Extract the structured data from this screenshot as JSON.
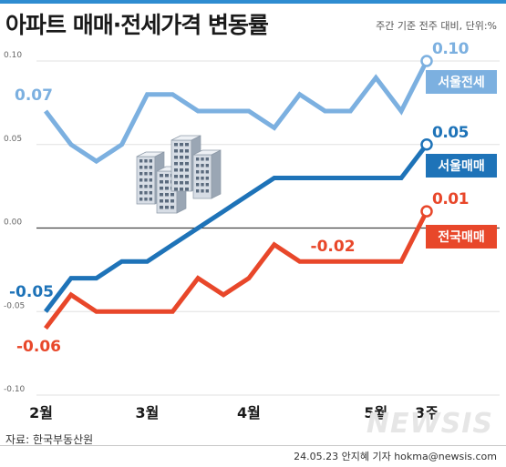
{
  "title": "아파트 매매·전세가격 변동률",
  "subtitle": "주간 기준 전주 대비, 단위:%",
  "source": "자료: 한국부동산원",
  "credit": "24.05.23 안지혜 기자 hokma@newsis.com",
  "watermark": "NEWSIS",
  "chart_data": {
    "type": "line",
    "ylim": [
      -0.1,
      0.1
    ],
    "yticks": [
      "0.10",
      "0.05",
      "0.00",
      "-0.05",
      "-0.10"
    ],
    "ytick_values": [
      0.1,
      0.05,
      0.0,
      -0.05,
      -0.1
    ],
    "grid": "horizontal",
    "xtick_labels": [
      {
        "label": "2월",
        "index": 0
      },
      {
        "label": "3월",
        "index": 4
      },
      {
        "label": "4월",
        "index": 8
      },
      {
        "label": "5월",
        "index": 13
      },
      {
        "label": "3주",
        "index": 15
      }
    ],
    "series": [
      {
        "name": "서울전세",
        "color": "#7cb0e0",
        "values": [
          0.07,
          0.05,
          0.04,
          0.05,
          0.08,
          0.08,
          0.07,
          0.07,
          0.07,
          0.06,
          0.08,
          0.07,
          0.07,
          0.09,
          0.07,
          0.1
        ],
        "start_label": "0.07",
        "end_label": "0.10"
      },
      {
        "name": "서울매매",
        "color": "#1e73b8",
        "values": [
          -0.05,
          -0.03,
          -0.03,
          -0.02,
          -0.02,
          -0.01,
          0.0,
          0.01,
          0.02,
          0.03,
          0.03,
          0.03,
          0.03,
          0.03,
          0.03,
          0.05
        ],
        "start_label": "-0.05",
        "end_label": "0.05"
      },
      {
        "name": "전국매매",
        "color": "#e8472a",
        "values": [
          -0.06,
          -0.04,
          -0.05,
          -0.05,
          -0.05,
          -0.05,
          -0.03,
          -0.04,
          -0.03,
          -0.01,
          -0.02,
          -0.02,
          -0.02,
          -0.02,
          -0.02,
          0.01
        ],
        "start_label": "-0.06",
        "mid_label": "-0.02",
        "mid_index": 11,
        "end_label": "0.01"
      }
    ]
  }
}
